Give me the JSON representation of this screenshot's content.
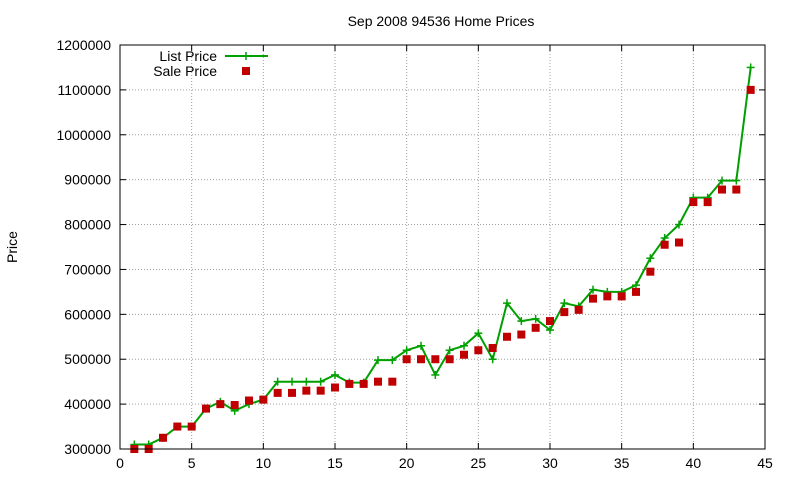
{
  "chart_data": {
    "type": "line",
    "title": "Sep 2008 94536 Home Prices",
    "xlabel": "",
    "ylabel": "Price",
    "xlim": [
      0,
      45
    ],
    "ylim": [
      300000,
      1200000
    ],
    "xticks": [
      0,
      5,
      10,
      15,
      20,
      25,
      30,
      35,
      40,
      45
    ],
    "yticks": [
      300000,
      400000,
      500000,
      600000,
      700000,
      800000,
      900000,
      1000000,
      1100000,
      1200000
    ],
    "grid": true,
    "legend_position": "top-left",
    "series": [
      {
        "name": "List Price",
        "style": "line+cross",
        "color": "#00a000",
        "x": [
          1,
          2,
          3,
          4,
          5,
          6,
          7,
          8,
          9,
          10,
          11,
          12,
          13,
          14,
          15,
          16,
          17,
          18,
          19,
          20,
          21,
          22,
          23,
          24,
          25,
          26,
          27,
          28,
          29,
          30,
          31,
          32,
          33,
          34,
          35,
          36,
          37,
          38,
          39,
          40,
          41,
          42,
          43,
          44
        ],
        "y": [
          310000,
          310000,
          325000,
          350000,
          350000,
          390000,
          405000,
          385000,
          400000,
          410000,
          450000,
          450000,
          450000,
          450000,
          465000,
          448000,
          448000,
          498000,
          498000,
          520000,
          530000,
          465000,
          520000,
          530000,
          558000,
          500000,
          625000,
          585000,
          590000,
          565000,
          625000,
          618000,
          655000,
          650000,
          650000,
          665000,
          725000,
          770000,
          800000,
          860000,
          860000,
          898000,
          898000,
          1150000
        ]
      },
      {
        "name": "Sale Price",
        "style": "square",
        "color": "#c00000",
        "x": [
          1,
          2,
          3,
          4,
          5,
          6,
          7,
          8,
          9,
          10,
          11,
          12,
          13,
          14,
          15,
          16,
          17,
          18,
          19,
          20,
          21,
          22,
          23,
          24,
          25,
          26,
          27,
          28,
          29,
          30,
          31,
          32,
          33,
          34,
          35,
          36,
          37,
          38,
          39,
          40,
          41,
          42,
          43,
          44
        ],
        "y": [
          300000,
          300000,
          325000,
          350000,
          350000,
          390000,
          400000,
          398000,
          408000,
          410000,
          425000,
          425000,
          430000,
          430000,
          437000,
          445000,
          445000,
          450000,
          450000,
          500000,
          500000,
          500000,
          500000,
          510000,
          520000,
          525000,
          550000,
          555000,
          570000,
          585000,
          605000,
          610000,
          635000,
          640000,
          640000,
          650000,
          695000,
          755000,
          760000,
          850000,
          850000,
          878000,
          878000,
          1100000
        ]
      }
    ]
  }
}
